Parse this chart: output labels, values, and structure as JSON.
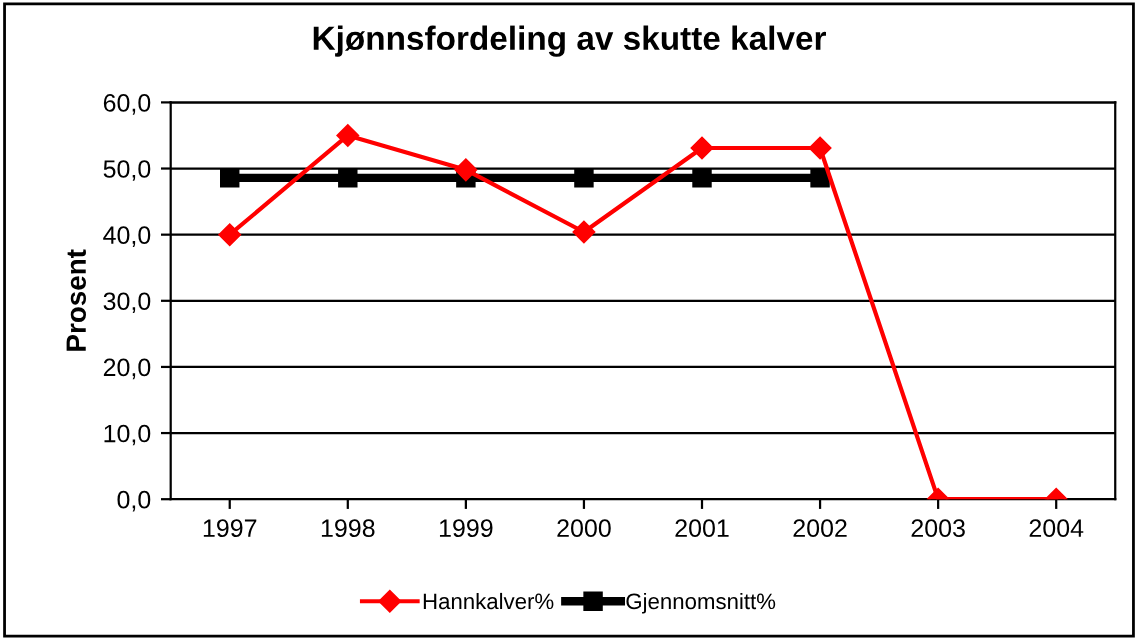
{
  "chart_data": {
    "type": "line",
    "title": "Kjønnsfordeling av skutte kalver",
    "ylabel": "Prosent",
    "categories": [
      "1997",
      "1998",
      "1999",
      "2000",
      "2001",
      "2002",
      "2003",
      "2004"
    ],
    "series": [
      {
        "name": "Hannkalver%",
        "color": "#ff0000",
        "marker": "diamond",
        "values": [
          40.0,
          55.0,
          49.8,
          40.4,
          53.1,
          53.1,
          0.0,
          0.0
        ]
      },
      {
        "name": "Gjennomsnitt%",
        "color": "#000000",
        "marker": "square",
        "values": [
          48.6,
          48.6,
          48.6,
          48.6,
          48.6,
          48.6,
          null,
          null
        ]
      }
    ],
    "ylim": [
      0,
      60
    ],
    "yticks": [
      {
        "value": 0,
        "label": "0,0"
      },
      {
        "value": 10,
        "label": "10,0"
      },
      {
        "value": 20,
        "label": "20,0"
      },
      {
        "value": 30,
        "label": "30,0"
      },
      {
        "value": 40,
        "label": "40,0"
      },
      {
        "value": 50,
        "label": "50,0"
      },
      {
        "value": 60,
        "label": "60,0"
      }
    ],
    "grid": "y",
    "legend": "bottom"
  }
}
